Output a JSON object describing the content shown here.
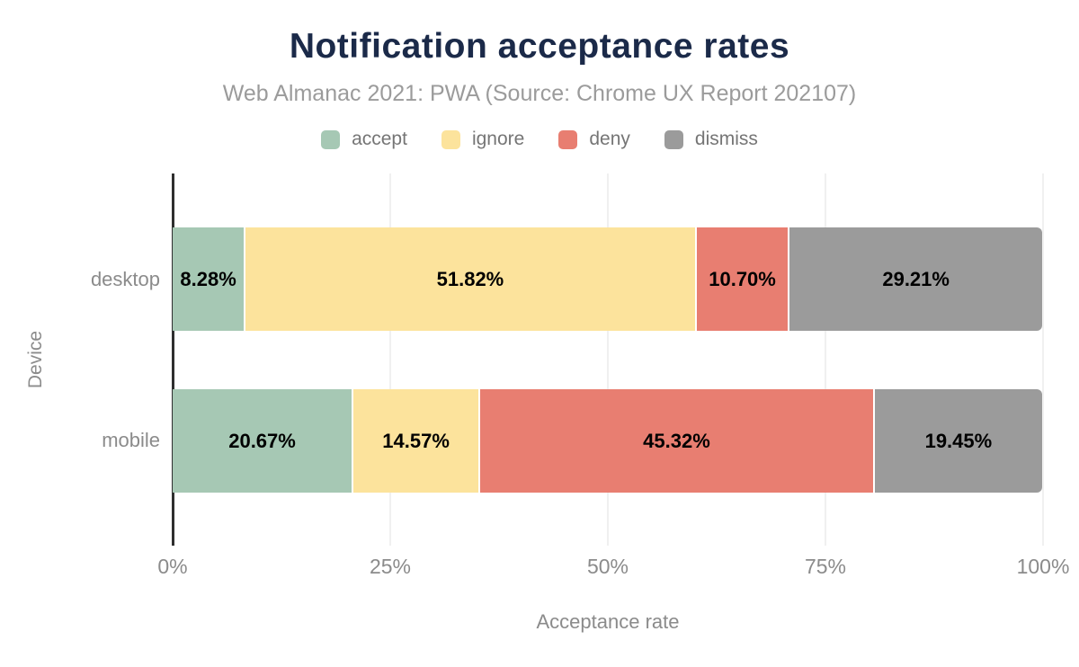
{
  "chart_data": {
    "type": "bar",
    "orientation": "horizontal",
    "stacked": true,
    "title": "Notification acceptance rates",
    "subtitle": "Web Almanac 2021: PWA (Source: Chrome UX Report 202107)",
    "xlabel": "Acceptance rate",
    "ylabel": "Device",
    "categories": [
      "desktop",
      "mobile"
    ],
    "series": [
      {
        "name": "accept",
        "color": "#a6c8b4",
        "values": [
          8.28,
          20.67
        ]
      },
      {
        "name": "ignore",
        "color": "#fce39c",
        "values": [
          51.82,
          14.57
        ]
      },
      {
        "name": "deny",
        "color": "#e87e71",
        "values": [
          10.7,
          45.32
        ]
      },
      {
        "name": "dismiss",
        "color": "#9b9b9b",
        "values": [
          29.21,
          19.45
        ]
      }
    ],
    "labels": [
      [
        "8.28%",
        "51.82%",
        "10.70%",
        "29.21%"
      ],
      [
        "20.67%",
        "14.57%",
        "45.32%",
        "19.45%"
      ]
    ],
    "x_ticks": [
      "0%",
      "25%",
      "50%",
      "75%",
      "100%"
    ],
    "x_tick_values": [
      0,
      25,
      50,
      75,
      100
    ],
    "xlim": [
      0,
      100
    ],
    "legend_position": "top",
    "grid": "vertical",
    "value_label_color": "#000000",
    "title_color": "#1b2a49",
    "subtitle_color": "#9b9b9b",
    "axis_text_color": "#8b8b8b",
    "gridline_color": "#f0f0f0",
    "axis_line_color": "#2f2f2f"
  }
}
